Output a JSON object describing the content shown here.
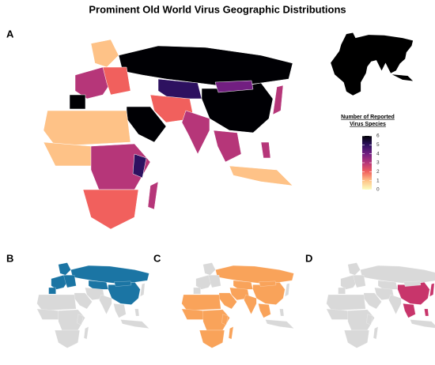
{
  "chart_data": {
    "type": "choropleth",
    "title": "Prominent Old World Virus Geographic Distributions",
    "panel_labels": [
      "A",
      "B",
      "C",
      "D"
    ],
    "legend_title": [
      "Number of Reported",
      "Virus Species"
    ],
    "scale_lim": [
      0,
      6
    ],
    "scale_ticks": [
      0,
      1,
      2,
      3,
      4,
      5,
      6
    ],
    "colors": [
      "#fcfdbf",
      "#fec287",
      "#f1605d",
      "#b63679",
      "#721f81",
      "#2d1160",
      "#000004"
    ],
    "values": [
      6,
      5,
      6,
      4,
      3,
      6,
      1,
      2,
      6,
      2,
      3,
      3,
      3,
      1,
      1,
      3,
      5,
      2,
      3,
      1,
      3
    ],
    "base_color": "#d9d9d9",
    "highlight_colors": [
      "#1b75a4",
      "#f9a35a",
      "#c8356b"
    ]
  }
}
